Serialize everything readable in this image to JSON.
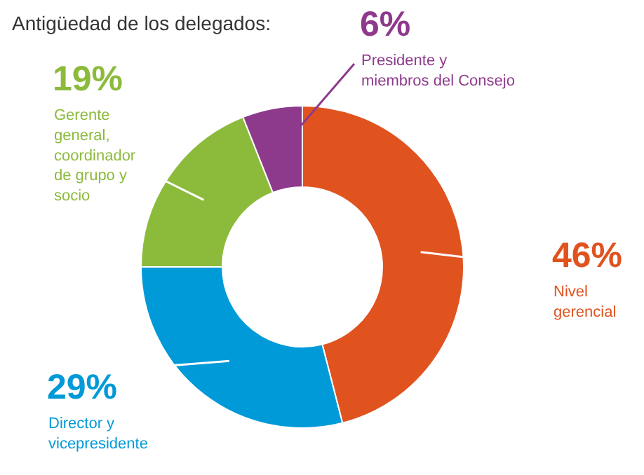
{
  "chart_data": {
    "type": "donut",
    "title": "Antigüedad de los delegados:",
    "categories": [
      "Nivel\ngerencial",
      "Director y\nvicepresidente",
      "Gerente\ngeneral,\ncoordinador\nde grupo y\nsocio",
      "Presidente y\nmiembros del Consejo"
    ],
    "values": [
      46,
      29,
      19,
      6
    ],
    "value_labels": [
      "46%",
      "29%",
      "19%",
      "6%"
    ],
    "colors": [
      "#e0531f",
      "#009ad8",
      "#8cbb3c",
      "#8e3a8c"
    ]
  }
}
